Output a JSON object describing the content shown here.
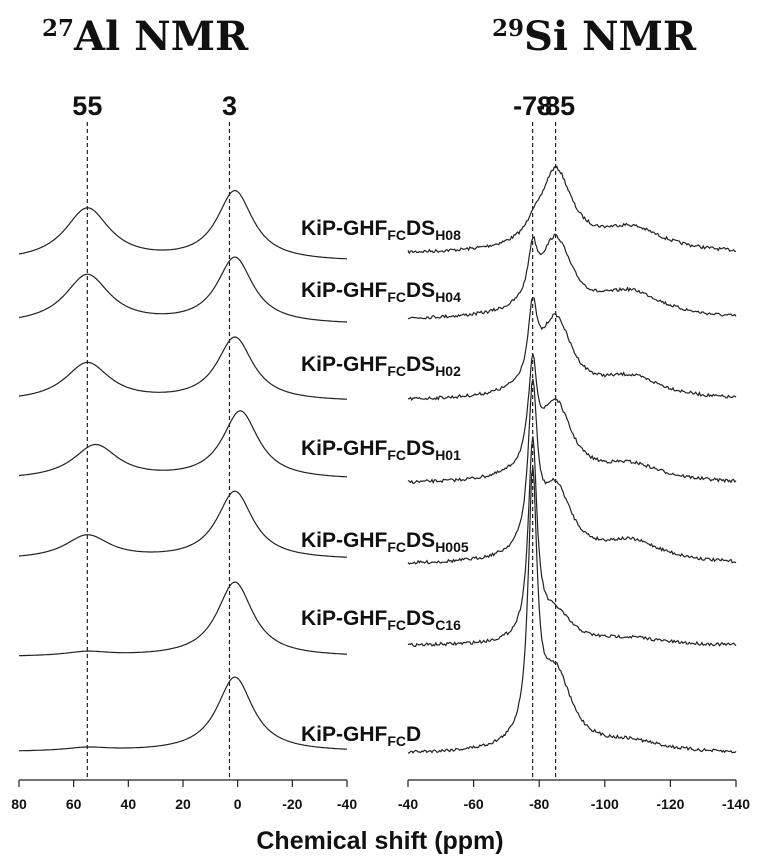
{
  "chart_data": [
    {
      "type": "line",
      "title": "27Al NMR",
      "title_sup": "27",
      "title_main": "Al NMR",
      "xlabel": "Chemical shift (ppm)",
      "xlim": [
        80,
        -40
      ],
      "xticks": [
        80,
        60,
        40,
        20,
        0,
        -20,
        -40
      ],
      "xtick_labels": [
        "80",
        "60",
        "40",
        "20",
        "0",
        "-20",
        "-40"
      ],
      "reference_lines": [
        {
          "position": 55,
          "label": "55"
        },
        {
          "position": 3,
          "label": "3"
        }
      ],
      "series": [
        {
          "peaks": [
            {
              "center": 55,
              "height": 0.62
            },
            {
              "center": 1,
              "height": 0.82
            }
          ]
        },
        {
          "peaks": [
            {
              "center": 55,
              "height": 0.58
            },
            {
              "center": 1,
              "height": 0.78
            }
          ]
        },
        {
          "peaks": [
            {
              "center": 55,
              "height": 0.45
            },
            {
              "center": 1,
              "height": 0.75
            }
          ]
        },
        {
          "peaks": [
            {
              "center": 52,
              "height": 0.4
            },
            {
              "center": -1,
              "height": 0.8
            }
          ]
        },
        {
          "peaks": [
            {
              "center": 55,
              "height": 0.28
            },
            {
              "center": 1,
              "height": 0.8
            }
          ]
        },
        {
          "peaks": [
            {
              "center": 55,
              "height": 0.05
            },
            {
              "center": 1,
              "height": 0.88
            }
          ]
        },
        {
          "peaks": [
            {
              "center": 55,
              "height": 0.04
            },
            {
              "center": 1,
              "height": 0.88
            }
          ]
        }
      ]
    },
    {
      "type": "line",
      "title": "29Si NMR",
      "title_sup": "29",
      "title_main": "Si NMR",
      "xlabel": "Chemical shift (ppm)",
      "xlim": [
        -40,
        -140
      ],
      "xticks": [
        -40,
        -60,
        -80,
        -100,
        -120,
        -140
      ],
      "xtick_labels": [
        "-40",
        "-60",
        "-80",
        "-100",
        "-120",
        "-140"
      ],
      "reference_lines": [
        {
          "position": -78,
          "label": "-78"
        },
        {
          "position": -85,
          "label": "-85"
        }
      ],
      "series": [
        {
          "name_base": "KiP-GHF",
          "name_sub1": "FC",
          "name_mid": "DS",
          "name_sub2": "H08",
          "peaks": [
            {
              "center": -78,
              "height": 0.1
            },
            {
              "center": -85,
              "height": 0.95
            },
            {
              "center": -108,
              "height": 0.28
            }
          ]
        },
        {
          "name_base": "KiP-GHF",
          "name_sub1": "FC",
          "name_mid": "DS",
          "name_sub2": "H04",
          "peaks": [
            {
              "center": -78,
              "height": 0.55
            },
            {
              "center": -85,
              "height": 0.9
            },
            {
              "center": -108,
              "height": 0.3
            }
          ]
        },
        {
          "name_base": "KiP-GHF",
          "name_sub1": "FC",
          "name_mid": "DS",
          "name_sub2": "H02",
          "peaks": [
            {
              "center": -78,
              "height": 0.8
            },
            {
              "center": -85,
              "height": 0.92
            },
            {
              "center": -108,
              "height": 0.25
            }
          ]
        },
        {
          "name_base": "KiP-GHF",
          "name_sub1": "FC",
          "name_mid": "DS",
          "name_sub2": "H01",
          "peaks": [
            {
              "center": -78,
              "height": 1.1
            },
            {
              "center": -85,
              "height": 0.9
            },
            {
              "center": -108,
              "height": 0.2
            }
          ]
        },
        {
          "name_base": "KiP-GHF",
          "name_sub1": "FC",
          "name_mid": "DS",
          "name_sub2": "H005",
          "peaks": [
            {
              "center": -78,
              "height": 1.8
            },
            {
              "center": -85,
              "height": 0.85
            },
            {
              "center": -108,
              "height": 0.25
            }
          ]
        },
        {
          "name_base": "KiP-GHF",
          "name_sub1": "FC",
          "name_mid": "DS",
          "name_sub2": "C16",
          "peaks": [
            {
              "center": -78,
              "height": 2.3
            },
            {
              "center": -85,
              "height": 0.35
            },
            {
              "center": -108,
              "height": 0.08
            }
          ]
        },
        {
          "name_base": "KiP-GHF",
          "name_sub1": "FC",
          "name_mid": "D",
          "name_sub2": "",
          "peaks": [
            {
              "center": -78,
              "height": 3.0
            },
            {
              "center": -85,
              "height": 0.9
            },
            {
              "center": -108,
              "height": 0.12
            }
          ]
        }
      ]
    }
  ]
}
